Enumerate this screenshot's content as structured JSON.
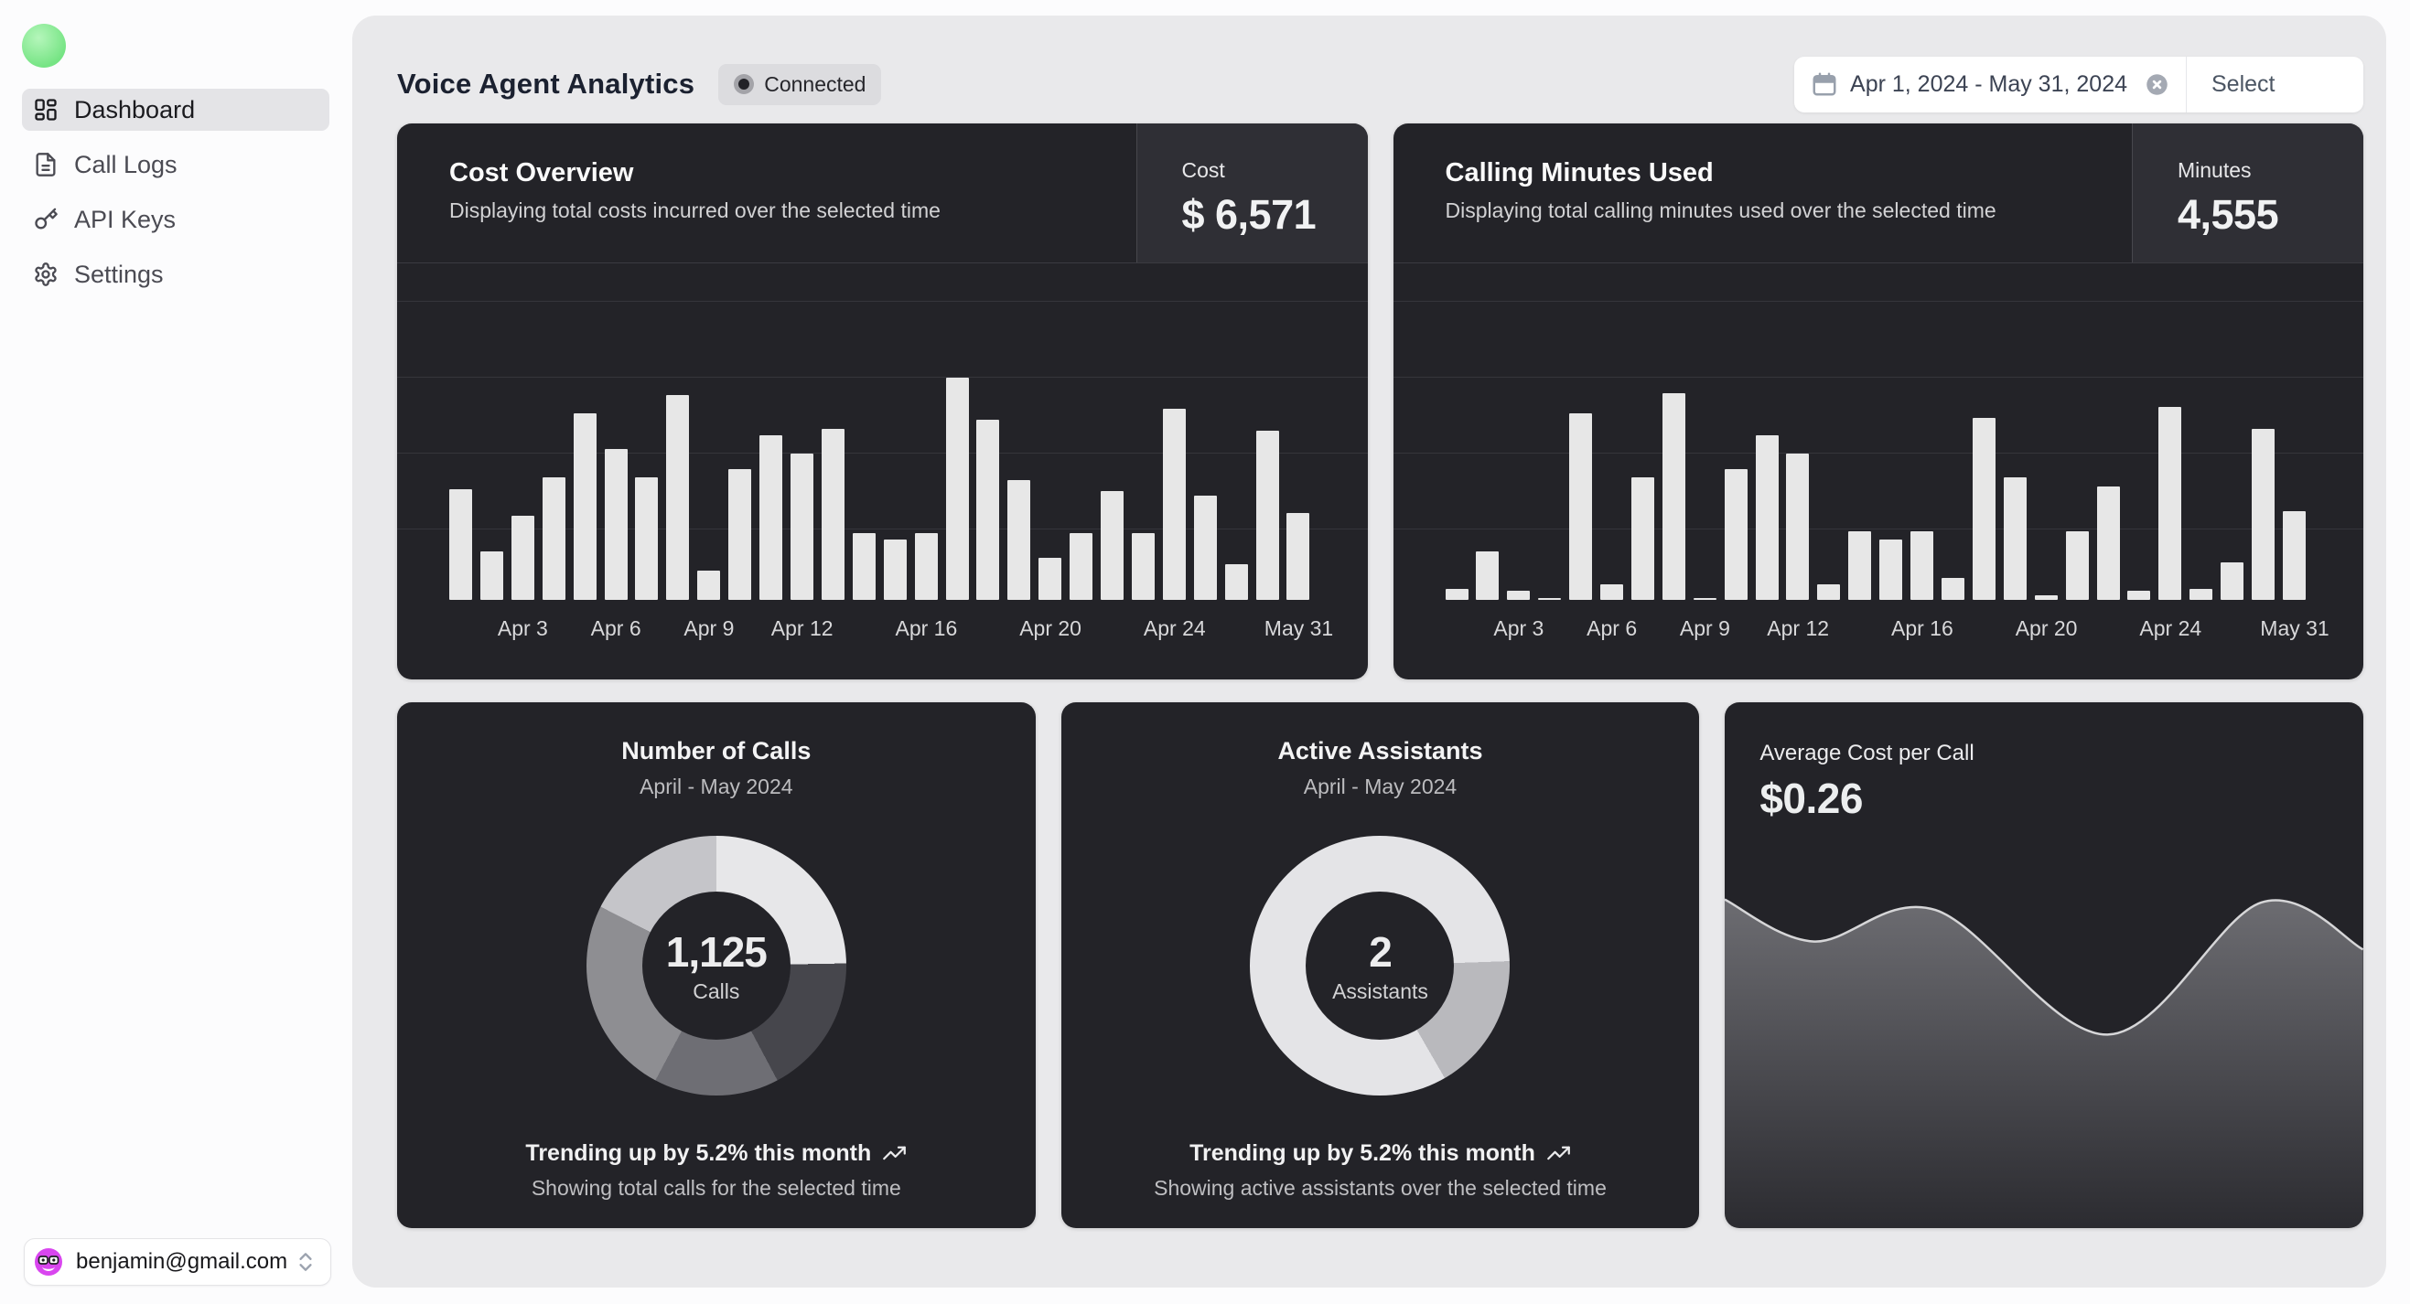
{
  "theme": {
    "page_bg": "#fcfcfd",
    "panel_bg": "#e9e9eb",
    "card_bg": "#232328",
    "card_stat_bg": "#2f2f35",
    "bar_color": "#e7e7e7",
    "gridline_color": "#35353b",
    "logo_green": "#7ee787",
    "avatar_magenta": "#d946ef",
    "active_item_bg": "#e4e4e7",
    "badge_bg": "#dcdcdf"
  },
  "sidebar": {
    "logo_icon": "green-orb-logo",
    "items": [
      {
        "label": "Dashboard",
        "icon": "dashboard-icon",
        "active": true
      },
      {
        "label": "Call Logs",
        "icon": "file-text-icon",
        "active": false
      },
      {
        "label": "API Keys",
        "icon": "key-icon",
        "active": false
      },
      {
        "label": "Settings",
        "icon": "gear-icon",
        "active": false
      }
    ],
    "user": {
      "email": "benjamin@gmail.com",
      "avatar_icon": "face-with-glasses-avatar"
    }
  },
  "header": {
    "title": "Voice Agent Analytics",
    "status_label": "Connected",
    "date_range": "Apr 1, 2024 - May 31, 2024",
    "select_label": "Select"
  },
  "cards": {
    "cost": {
      "title": "Cost Overview",
      "subtitle": "Displaying total costs incurred over the selected time",
      "stat_label": "Cost",
      "stat_value": "$ 6,571"
    },
    "minutes": {
      "title": "Calling Minutes Used",
      "subtitle": "Displaying total calling minutes used over the selected time",
      "stat_label": "Minutes",
      "stat_value": "4,555"
    },
    "calls": {
      "title": "Number of Calls",
      "subtitle": "April - May 2024",
      "trend": "Trending up by 5.2% this month",
      "footnote": "Showing total calls for the selected time"
    },
    "assistants": {
      "title": "Active Assistants",
      "subtitle": "April - May 2024",
      "trend": "Trending up by 5.2% this month",
      "footnote": "Showing active assistants over the selected time"
    },
    "avg_cost": {
      "title": "Average Cost per Call",
      "value": "$0.26"
    }
  },
  "chart_data": [
    {
      "type": "bar",
      "title": "Cost Overview",
      "ylabel": "Cost",
      "total": "$ 6,571",
      "bar_color": "#e7e7e7",
      "grid": true,
      "ylim": [
        0,
        100
      ],
      "values": [
        50,
        22,
        38,
        55,
        84,
        68,
        55,
        92,
        13,
        59,
        74,
        66,
        77,
        30,
        27,
        30,
        100,
        81,
        54,
        19,
        30,
        49,
        30,
        86,
        47,
        16,
        76,
        39
      ],
      "x_ticks": [
        {
          "index": 3,
          "label": "Apr 3"
        },
        {
          "index": 6,
          "label": "Apr 6"
        },
        {
          "index": 9,
          "label": "Apr 9"
        },
        {
          "index": 12,
          "label": "Apr 12"
        },
        {
          "index": 16,
          "label": "Apr 16"
        },
        {
          "index": 20,
          "label": "Apr 20"
        },
        {
          "index": 24,
          "label": "Apr 24"
        },
        {
          "index": 28,
          "label": "May 31"
        }
      ]
    },
    {
      "type": "bar",
      "title": "Calling Minutes Used",
      "ylabel": "Minutes",
      "total": "4,555",
      "bar_color": "#e7e7e7",
      "grid": true,
      "ylim": [
        0,
        100
      ],
      "values": [
        5,
        22,
        4,
        1,
        84,
        7,
        55,
        93,
        1,
        59,
        74,
        66,
        7,
        31,
        27,
        31,
        10,
        82,
        55,
        2,
        31,
        51,
        4,
        87,
        5,
        17,
        77,
        40
      ],
      "x_ticks": [
        {
          "index": 3,
          "label": "Apr 3"
        },
        {
          "index": 6,
          "label": "Apr 6"
        },
        {
          "index": 9,
          "label": "Apr 9"
        },
        {
          "index": 12,
          "label": "Apr 12"
        },
        {
          "index": 16,
          "label": "Apr 16"
        },
        {
          "index": 20,
          "label": "Apr 20"
        },
        {
          "index": 24,
          "label": "Apr 24"
        },
        {
          "index": 28,
          "label": "May 31"
        }
      ]
    },
    {
      "type": "donut",
      "title": "Number of Calls",
      "center_value": "1,125",
      "center_label": "Calls",
      "total": 1125,
      "segments": [
        {
          "value": 278,
          "start_deg": 0,
          "end_deg": 89,
          "color": "#e7e7e9"
        },
        {
          "value": 197,
          "start_deg": 89,
          "end_deg": 152,
          "color": "#46464c"
        },
        {
          "value": 175,
          "start_deg": 152,
          "end_deg": 208,
          "color": "#6e6e74"
        },
        {
          "value": 278,
          "start_deg": 208,
          "end_deg": 297,
          "color": "#8e8e92"
        },
        {
          "value": 197,
          "start_deg": 297,
          "end_deg": 360,
          "color": "#c5c5c9"
        }
      ]
    },
    {
      "type": "donut",
      "title": "Active Assistants",
      "center_value": "2",
      "center_label": "Assistants",
      "total": 2,
      "segments": [
        {
          "value": 1.66,
          "start_deg": 0,
          "end_deg": 88,
          "color": "#e4e4e7"
        },
        {
          "value": 0.34,
          "start_deg": 88,
          "end_deg": 150,
          "color": "#b9b9bd"
        },
        {
          "value": null,
          "start_deg": 150,
          "end_deg": 360,
          "color": "#e4e4e7"
        }
      ]
    },
    {
      "type": "area",
      "title": "Average Cost per Call",
      "value": "$0.26",
      "line_color": "#d6d6d8",
      "points_frac": [
        [
          0,
          0.375
        ],
        [
          0.14,
          0.455
        ],
        [
          0.33,
          0.395
        ],
        [
          0.6,
          0.632
        ],
        [
          0.84,
          0.381
        ],
        [
          1,
          0.47
        ]
      ]
    }
  ]
}
